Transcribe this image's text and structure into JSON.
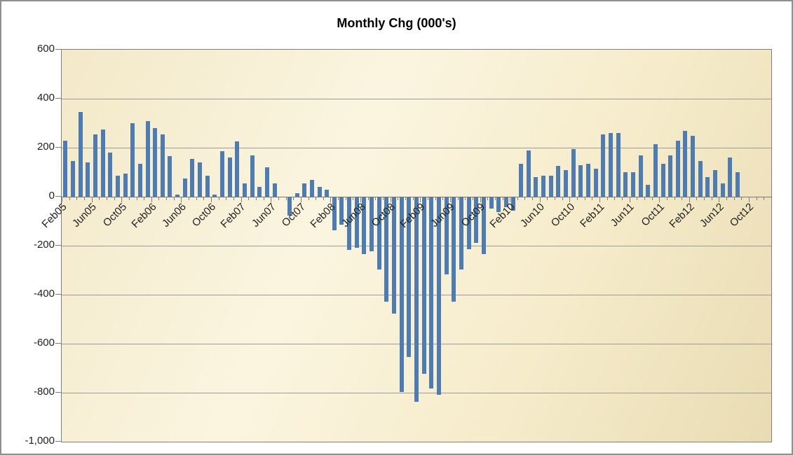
{
  "title": "Monthly Chg (000's)",
  "colors": {
    "bar": "#4d7cb2",
    "gridline": "#9b9b9b",
    "axis_line": "#777777",
    "plot_border": "#7f7f7f",
    "label_text": "#1f1f1f",
    "plot_bg_light": "#fbf5e0",
    "plot_bg_dark": "#e9dcb4"
  },
  "y_axis": {
    "tick_labels": [
      "600",
      "400",
      "200",
      "0",
      "-200",
      "-400",
      "-600",
      "-800",
      "-1,000"
    ],
    "max": 600,
    "min": -1000,
    "step": 200
  },
  "x_axis": {
    "tick_labels": [
      "Feb05",
      "Jun05",
      "Oct05",
      "Feb06",
      "Jun06",
      "Oct06",
      "Feb07",
      "Jun07",
      "Oct07",
      "Feb08",
      "Jun08",
      "Oct08",
      "Feb09",
      "Jun09",
      "Oct09",
      "Feb10",
      "Jun10",
      "Oct10",
      "Feb11",
      "Jun11",
      "Oct11",
      "Feb12",
      "Jun12",
      "Oct12"
    ],
    "label_every_n_categories": 4
  },
  "chart_data": {
    "type": "bar",
    "title": "Monthly Chg (000's)",
    "xlabel": "",
    "ylabel": "",
    "ylim": [
      -1000,
      600
    ],
    "y_tick_step": 200,
    "grid": true,
    "legend_position": "none",
    "categories": [
      "Feb05",
      "Mar05",
      "Apr05",
      "May05",
      "Jun05",
      "Jul05",
      "Aug05",
      "Sep05",
      "Oct05",
      "Nov05",
      "Dec05",
      "Jan06",
      "Feb06",
      "Mar06",
      "Apr06",
      "May06",
      "Jun06",
      "Jul06",
      "Aug06",
      "Sep06",
      "Oct06",
      "Nov06",
      "Dec06",
      "Jan07",
      "Feb07",
      "Mar07",
      "Apr07",
      "May07",
      "Jun07",
      "Jul07",
      "Aug07",
      "Sep07",
      "Oct07",
      "Nov07",
      "Dec07",
      "Jan08",
      "Feb08",
      "Mar08",
      "Apr08",
      "May08",
      "Jun08",
      "Jul08",
      "Aug08",
      "Sep08",
      "Oct08",
      "Nov08",
      "Dec08",
      "Jan09",
      "Feb09",
      "Mar09",
      "Apr09",
      "May09",
      "Jun09",
      "Jul09",
      "Aug09",
      "Sep09",
      "Oct09",
      "Nov09",
      "Dec09",
      "Jan10",
      "Feb10",
      "Mar10",
      "Apr10",
      "May10",
      "Jun10",
      "Jul10",
      "Aug10",
      "Sep10",
      "Oct10",
      "Nov10",
      "Dec10",
      "Jan11",
      "Feb11",
      "Mar11",
      "Apr11",
      "May11",
      "Jun11",
      "Jul11",
      "Aug11",
      "Sep11",
      "Oct11",
      "Nov11",
      "Dec11",
      "Jan12",
      "Feb12",
      "Mar12",
      "Apr12",
      "May12",
      "Jun12",
      "Jul12",
      "Aug12",
      "Sep12",
      "Oct12",
      "Nov12",
      "Dec12"
    ],
    "values": [
      230,
      145,
      345,
      140,
      255,
      275,
      180,
      85,
      95,
      300,
      135,
      310,
      280,
      255,
      165,
      10,
      75,
      155,
      140,
      85,
      10,
      185,
      160,
      225,
      55,
      170,
      40,
      120,
      55,
      0,
      -75,
      15,
      55,
      70,
      40,
      30,
      -135,
      -110,
      -215,
      -205,
      -230,
      -220,
      -295,
      -425,
      -475,
      -795,
      -650,
      -835,
      -720,
      -780,
      -805,
      -315,
      -425,
      -295,
      -210,
      -185,
      -230,
      -45,
      -60,
      -40,
      -55,
      135,
      190,
      80,
      85,
      85,
      125,
      110,
      195,
      130,
      135,
      115,
      255,
      260,
      260,
      100,
      100,
      170,
      50,
      215,
      135,
      170,
      230,
      270,
      250,
      145,
      80,
      110,
      55,
      160,
      100,
      null,
      null,
      null,
      null
    ]
  }
}
